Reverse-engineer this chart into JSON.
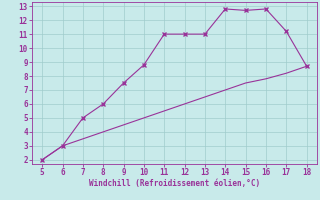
{
  "line1_x": [
    5,
    6,
    7,
    8,
    9,
    10,
    11,
    12,
    13,
    14,
    15,
    16,
    17,
    18
  ],
  "line1_y": [
    2,
    3,
    5,
    6,
    7.5,
    8.8,
    11,
    11,
    11,
    12.8,
    12.7,
    12.8,
    11.2,
    8.7
  ],
  "line2_x": [
    5,
    6,
    7,
    8,
    9,
    10,
    11,
    12,
    13,
    14,
    15,
    16,
    17,
    18
  ],
  "line2_y": [
    2,
    3,
    3.5,
    4.0,
    4.5,
    5.0,
    5.5,
    6.0,
    6.5,
    7.0,
    7.5,
    7.8,
    8.2,
    8.7
  ],
  "line_color": "#993399",
  "bg_color": "#c8eaea",
  "grid_color": "#a0cccc",
  "xlabel": "Windchill (Refroidissement éolien,°C)",
  "xlim": [
    4.5,
    18.5
  ],
  "ylim": [
    1.7,
    13.3
  ],
  "xticks": [
    5,
    6,
    7,
    8,
    9,
    10,
    11,
    12,
    13,
    14,
    15,
    16,
    17,
    18
  ],
  "yticks": [
    2,
    3,
    4,
    5,
    6,
    7,
    8,
    9,
    10,
    11,
    12,
    13
  ],
  "tick_color": "#993399",
  "label_color": "#993399",
  "marker": "x",
  "markersize": 3,
  "markeredgewidth": 1.0,
  "linewidth": 0.8,
  "tick_fontsize": 5.5,
  "xlabel_fontsize": 5.5
}
